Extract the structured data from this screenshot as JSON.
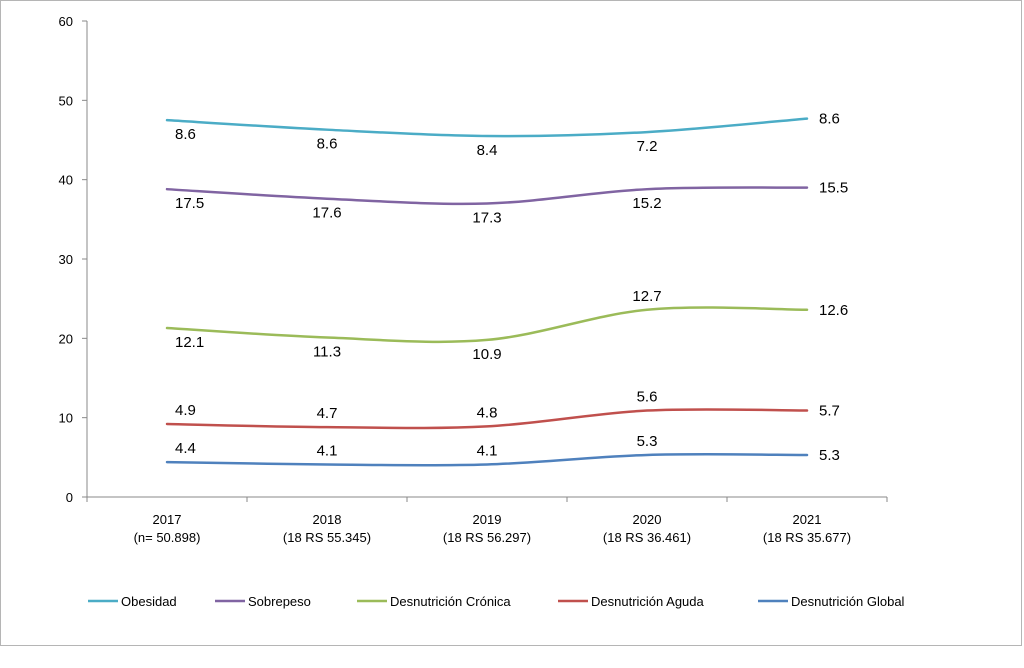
{
  "chart_data": {
    "type": "line",
    "title": "",
    "xlabel": "",
    "ylabel": "",
    "ylim": [
      0,
      60
    ],
    "yticks": [
      "0",
      "10",
      "20",
      "30",
      "40",
      "50",
      "60"
    ],
    "grid": false,
    "legend_position": "bottom",
    "categories": [
      {
        "year": "2017",
        "note": "(n= 50.898)"
      },
      {
        "year": "2018",
        "note": "(18 RS 55.345)"
      },
      {
        "year": "2019",
        "note": "(18 RS 56.297)"
      },
      {
        "year": "2020",
        "note": "(18 RS 36.461)"
      },
      {
        "year": "2021",
        "note": "(18 RS 35.677)"
      }
    ],
    "series": [
      {
        "name": "Obesidad",
        "color": "#4BACC6",
        "y": [
          47.5,
          46.3,
          45.5,
          46.0,
          47.7
        ],
        "labels": [
          "8.6",
          "8.6",
          "8.4",
          "7.2",
          "8.6"
        ]
      },
      {
        "name": "Sobrepeso",
        "color": "#8064A2",
        "y": [
          38.8,
          37.6,
          37.0,
          38.8,
          39.0
        ],
        "labels": [
          "17.5",
          "17.6",
          "17.3",
          "15.2",
          "15.5"
        ]
      },
      {
        "name": "Desnutrición Crónica",
        "color": "#9BBB59",
        "y": [
          21.3,
          20.1,
          19.8,
          23.6,
          23.6
        ],
        "labels": [
          "12.1",
          "11.3",
          "10.9",
          "12.7",
          "12.6"
        ]
      },
      {
        "name": "Desnutrición  Aguda",
        "color": "#C0504D",
        "y": [
          9.2,
          8.8,
          8.9,
          10.9,
          10.9
        ],
        "labels": [
          "4.9",
          "4.7",
          "4.8",
          "5.6",
          "5.7"
        ]
      },
      {
        "name": "Desnutrición  Global",
        "color": "#4F81BD",
        "y": [
          4.4,
          4.1,
          4.1,
          5.3,
          5.3
        ],
        "labels": [
          "4.4",
          "4.1",
          "4.1",
          "5.3",
          "5.3"
        ]
      }
    ]
  }
}
